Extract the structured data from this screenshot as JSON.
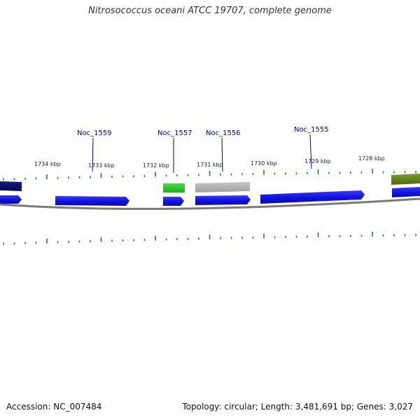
{
  "title": "Nitrosococcus oceani ATCC 19707, complete genome",
  "footer": {
    "accession": "Accession: NC_007484",
    "stats": "Topology: circular; Length: 3,481,691 bp; Genes: 3,027"
  },
  "gene_labels": [
    "Noc_1559",
    "Noc_1557",
    "Noc_1556",
    "Noc_1555"
  ],
  "kbp_labels": [
    "1734 kbp",
    "1733 kbp",
    "1732 kbp",
    "1731 kbp",
    "1730 kbp",
    "1729 kbp",
    "1728 kbp"
  ],
  "colors": {
    "gene_blue": "#1a1aee",
    "gene_navy": "#0b0b6e",
    "gene_green": "#33cc33",
    "gene_gray": "#b0b0b0",
    "gene_olive": "#6b8e23",
    "tick_green": "#228b22",
    "backbone": "#808080",
    "label_blue": "#00008b"
  }
}
